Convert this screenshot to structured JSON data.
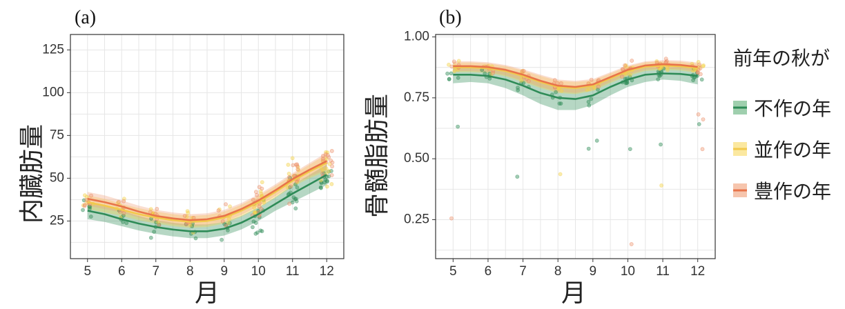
{
  "chart_data": [
    {
      "type": "line",
      "panel_label": "(a)",
      "xlabel": "月",
      "ylabel": "内臓肪量",
      "x_ticks": [
        5,
        6,
        7,
        8,
        9,
        10,
        11,
        12
      ],
      "y_ticks": [
        25,
        50,
        75,
        100,
        125
      ],
      "xlim": [
        4.5,
        12.5
      ],
      "ylim": [
        3,
        134
      ],
      "grid": true,
      "x": [
        5,
        5.5,
        6,
        6.5,
        7,
        7.5,
        8,
        8.5,
        9,
        9.5,
        10,
        10.5,
        11,
        11.5,
        12
      ],
      "series": [
        {
          "name": "不作の年",
          "color": "#2e8b57",
          "fill": "#2e8b57",
          "values": [
            31,
            29,
            26,
            23.5,
            21.5,
            20,
            19,
            19,
            20.5,
            24,
            29,
            35,
            41,
            46.5,
            52
          ],
          "lower": [
            26,
            24.5,
            22,
            19.5,
            17.5,
            16,
            15,
            15,
            16.5,
            20,
            25,
            31,
            36,
            41,
            46
          ],
          "upper": [
            36,
            34,
            31,
            28,
            25.5,
            24,
            23,
            23,
            24.5,
            28,
            33,
            39,
            46,
            52,
            58
          ]
        },
        {
          "name": "並作の年",
          "color": "#f2c94c",
          "fill": "#f5d547",
          "values": [
            36,
            34,
            31.5,
            29,
            27,
            25.5,
            24.5,
            25,
            27,
            31,
            36,
            42,
            48.5,
            54,
            59
          ],
          "lower": [
            32,
            30,
            28,
            25.5,
            23.5,
            22,
            21,
            21.5,
            23.5,
            27.5,
            32.5,
            38.5,
            45,
            50,
            54
          ],
          "upper": [
            40,
            38,
            35,
            32.5,
            30.5,
            29,
            28,
            28.5,
            30.5,
            34.5,
            39.5,
            45.5,
            52,
            58,
            64
          ]
        },
        {
          "name": "豊作の年",
          "color": "#e8744a",
          "fill": "#f0a07c",
          "values": [
            38,
            36,
            33.5,
            30.5,
            28,
            26.5,
            25.5,
            26,
            28,
            32,
            37,
            43,
            49.5,
            55,
            60
          ],
          "lower": [
            34,
            32,
            30,
            27,
            24.5,
            23,
            22,
            22.5,
            24.5,
            28.5,
            33.5,
            39.5,
            46,
            51,
            55
          ],
          "upper": [
            42,
            40,
            37,
            34,
            31.5,
            30,
            29,
            29.5,
            31.5,
            35.5,
            40.5,
            46.5,
            53,
            59,
            65
          ]
        }
      ]
    },
    {
      "type": "line",
      "panel_label": "(b)",
      "xlabel": "月",
      "ylabel": "骨髄脂肪量",
      "x_ticks": [
        5,
        6,
        7,
        8,
        9,
        10,
        11,
        12
      ],
      "y_ticks": [
        "0.25",
        "0.50",
        "0.75",
        "1.00"
      ],
      "xlim": [
        4.5,
        12.5
      ],
      "ylim": [
        0.09,
        1.01
      ],
      "grid": true,
      "x": [
        5,
        5.5,
        6,
        6.5,
        7,
        7.5,
        8,
        8.5,
        9,
        9.5,
        10,
        10.5,
        11,
        11.5,
        12
      ],
      "series": [
        {
          "name": "不作の年",
          "color": "#2e8b57",
          "fill": "#2e8b57",
          "values": [
            0.845,
            0.845,
            0.84,
            0.825,
            0.8,
            0.77,
            0.75,
            0.745,
            0.76,
            0.795,
            0.825,
            0.845,
            0.85,
            0.848,
            0.84
          ],
          "lower": [
            0.81,
            0.815,
            0.81,
            0.79,
            0.76,
            0.725,
            0.7,
            0.7,
            0.72,
            0.76,
            0.795,
            0.815,
            0.825,
            0.82,
            0.805
          ],
          "upper": [
            0.88,
            0.875,
            0.87,
            0.86,
            0.84,
            0.815,
            0.8,
            0.79,
            0.8,
            0.83,
            0.855,
            0.875,
            0.875,
            0.876,
            0.875
          ]
        },
        {
          "name": "並作の年",
          "color": "#f2c94c",
          "fill": "#f5d547",
          "values": [
            0.875,
            0.875,
            0.872,
            0.86,
            0.84,
            0.815,
            0.795,
            0.79,
            0.8,
            0.83,
            0.86,
            0.878,
            0.882,
            0.88,
            0.872
          ],
          "lower": [
            0.855,
            0.855,
            0.852,
            0.838,
            0.815,
            0.79,
            0.77,
            0.765,
            0.778,
            0.81,
            0.84,
            0.86,
            0.865,
            0.862,
            0.852
          ],
          "upper": [
            0.895,
            0.895,
            0.892,
            0.88,
            0.862,
            0.84,
            0.82,
            0.815,
            0.822,
            0.85,
            0.878,
            0.896,
            0.9,
            0.898,
            0.89
          ]
        },
        {
          "name": "豊作の年",
          "color": "#e8744a",
          "fill": "#f0a07c",
          "values": [
            0.88,
            0.88,
            0.876,
            0.865,
            0.845,
            0.82,
            0.8,
            0.795,
            0.805,
            0.835,
            0.865,
            0.883,
            0.888,
            0.885,
            0.877
          ],
          "lower": [
            0.86,
            0.86,
            0.856,
            0.843,
            0.82,
            0.795,
            0.775,
            0.77,
            0.783,
            0.815,
            0.845,
            0.865,
            0.87,
            0.867,
            0.857
          ],
          "upper": [
            0.9,
            0.9,
            0.896,
            0.885,
            0.867,
            0.845,
            0.825,
            0.82,
            0.827,
            0.855,
            0.883,
            0.9,
            0.905,
            0.903,
            0.895
          ]
        }
      ]
    }
  ],
  "legend": {
    "title": "前年の秋が",
    "items": [
      {
        "label": "不作の年",
        "color": "#2e8b57",
        "fill": "#9fcfae"
      },
      {
        "label": "並作の年",
        "color": "#f2c94c",
        "fill": "#fbe8a0"
      },
      {
        "label": "豊作の年",
        "color": "#e8744a",
        "fill": "#f6c5ad"
      }
    ]
  },
  "colors": {
    "grid": "#e6e6e6",
    "axis": "#333333",
    "band_opacity": 0.35,
    "point_opacity": 0.45
  }
}
